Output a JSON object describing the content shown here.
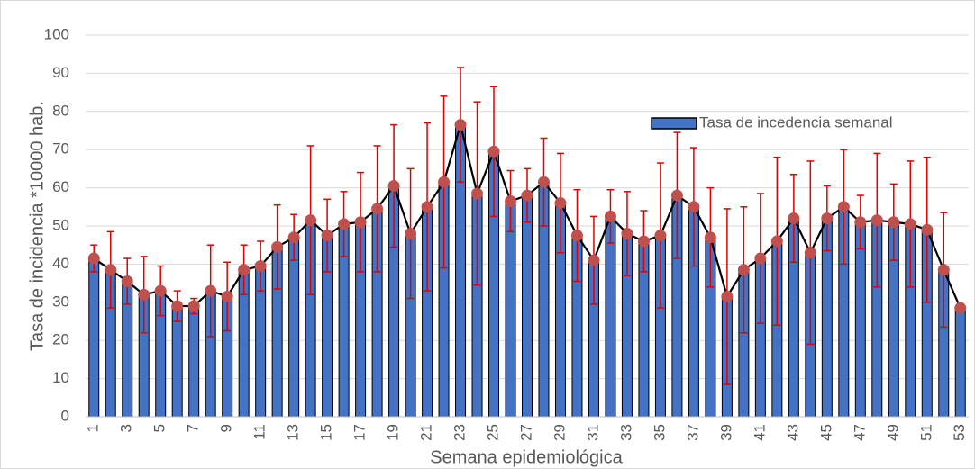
{
  "chart_data": {
    "type": "bar",
    "x_label": "Semana epidemiológica",
    "y_label": "Tasa de incidencia *10000 hab.",
    "categories": [
      1,
      null,
      3,
      null,
      5,
      null,
      7,
      null,
      9,
      null,
      11,
      null,
      13,
      null,
      15,
      null,
      17,
      null,
      19,
      null,
      21,
      null,
      23,
      null,
      25,
      null,
      27,
      null,
      29,
      null,
      31,
      null,
      33,
      null,
      35,
      null,
      37,
      null,
      39,
      null,
      41,
      null,
      43,
      null,
      45,
      null,
      47,
      null,
      49,
      null,
      51,
      null,
      53
    ],
    "series": [
      {
        "name": "Tasa de incedencia semanal",
        "color": "#4472c4",
        "line_color": "#000000",
        "marker_color": "#c0504d",
        "error_color": "#e00000",
        "values": [
          41.5,
          38.5,
          35.5,
          32,
          33,
          29,
          29,
          33,
          31.5,
          38.5,
          39.5,
          44.5,
          47,
          51.5,
          47.5,
          50.5,
          51,
          54.5,
          60.5,
          48,
          55,
          61.5,
          76.5,
          58.5,
          69.5,
          56.5,
          58,
          61.5,
          56,
          47.5,
          41,
          52.5,
          48,
          46,
          47.5,
          58,
          55,
          47,
          31.5,
          38.5,
          41.5,
          46,
          52,
          43,
          52,
          55,
          51,
          51.5,
          51,
          50.5,
          49,
          38.5,
          28.5
        ],
        "errors": [
          3.5,
          10,
          6,
          10,
          6.5,
          4,
          2,
          12,
          9,
          6.5,
          6.5,
          11,
          6,
          19.5,
          9.5,
          8.5,
          13,
          16.5,
          16,
          17,
          22,
          22.5,
          15,
          24,
          17,
          8,
          7,
          11.5,
          13,
          12,
          11.5,
          7,
          11,
          8,
          19,
          16.5,
          15.5,
          13,
          23,
          16.5,
          17,
          22,
          11.5,
          24,
          8.5,
          15,
          7,
          17.5,
          10,
          16.5,
          19,
          15,
          0.5
        ]
      }
    ],
    "ylim": [
      0,
      100
    ],
    "yticks": [
      0,
      10,
      20,
      30,
      40,
      50,
      60,
      70,
      80,
      90,
      100
    ],
    "grid": true,
    "legend": "upper right"
  }
}
